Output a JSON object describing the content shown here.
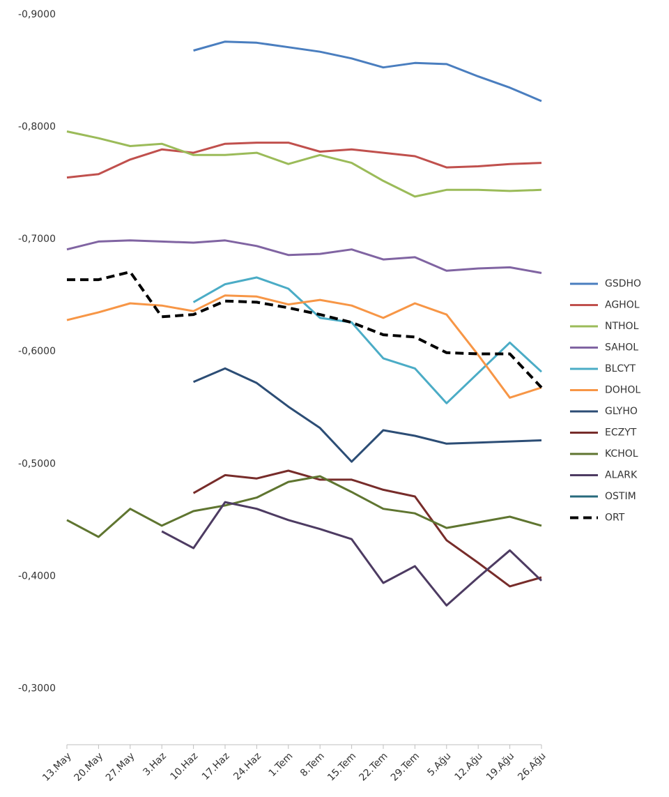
{
  "chart_data": {
    "type": "line",
    "categories": [
      "13.May",
      "20.May",
      "27.May",
      "3.Haz",
      "10.Haz",
      "17.Haz",
      "24.Haz",
      "1.Tem",
      "8.Tem",
      "15.Tem",
      "22.Tem",
      "29.Tem",
      "5.Ağu",
      "12.Ağu",
      "19.Ağu",
      "26.Ağu"
    ],
    "ylim": [
      -0.25,
      -0.9
    ],
    "yticks": [
      {
        "value": -0.9,
        "label": "-0,9000"
      },
      {
        "value": -0.8,
        "label": "-0,8000"
      },
      {
        "value": -0.7,
        "label": "-0,7000"
      },
      {
        "value": -0.6,
        "label": "-0,6000"
      },
      {
        "value": -0.5,
        "label": "-0,5000"
      },
      {
        "value": -0.4,
        "label": "-0,4000"
      },
      {
        "value": -0.3,
        "label": "-0,3000"
      }
    ],
    "grid": false,
    "legend": "right",
    "series": [
      {
        "name": "GSDHO",
        "color": "#4a7ebf",
        "values": [
          null,
          null,
          null,
          null,
          -0.868,
          -0.876,
          -0.875,
          -0.871,
          -0.867,
          -0.861,
          -0.853,
          -0.857,
          -0.856,
          -0.845,
          -0.835,
          -0.823
        ]
      },
      {
        "name": "AGHOL",
        "color": "#c0504d",
        "values": [
          -0.755,
          -0.758,
          -0.771,
          -0.78,
          -0.777,
          -0.785,
          -0.786,
          -0.786,
          -0.778,
          -0.78,
          -0.777,
          -0.774,
          -0.764,
          -0.765,
          -0.767,
          -0.768
        ]
      },
      {
        "name": "NTHOL",
        "color": "#9bbb59",
        "values": [
          -0.796,
          -0.79,
          -0.783,
          -0.785,
          -0.775,
          -0.775,
          -0.777,
          -0.767,
          -0.775,
          -0.768,
          -0.752,
          -0.738,
          -0.744,
          -0.744,
          -0.743,
          -0.744
        ]
      },
      {
        "name": "SAHOL",
        "color": "#8064a2",
        "values": [
          -0.691,
          -0.698,
          -0.699,
          -0.698,
          -0.697,
          -0.699,
          -0.694,
          -0.686,
          -0.687,
          -0.691,
          -0.682,
          -0.684,
          -0.672,
          -0.674,
          -0.675,
          -0.67
        ]
      },
      {
        "name": "BLCYT",
        "color": "#4bacc6",
        "values": [
          null,
          null,
          null,
          null,
          -0.644,
          -0.66,
          -0.666,
          -0.656,
          -0.63,
          -0.626,
          -0.594,
          -0.585,
          -0.554,
          -0.581,
          -0.608,
          -0.582
        ]
      },
      {
        "name": "DOHOL",
        "color": "#f79646",
        "values": [
          -0.628,
          -0.635,
          -0.643,
          -0.641,
          -0.636,
          -0.65,
          -0.649,
          -0.642,
          -0.646,
          -0.641,
          -0.63,
          -0.643,
          -0.633,
          -0.597,
          -0.559,
          -0.568
        ]
      },
      {
        "name": "GLYHO",
        "color": "#2c4d75",
        "values": [
          null,
          null,
          null,
          null,
          -0.573,
          -0.585,
          -0.572,
          -0.551,
          -0.532,
          -0.502,
          -0.53,
          -0.525,
          -0.518,
          -0.519,
          -0.52,
          -0.521
        ]
      },
      {
        "name": "ECZYT",
        "color": "#772c2a",
        "values": [
          null,
          null,
          null,
          null,
          -0.474,
          -0.49,
          -0.487,
          -0.494,
          -0.486,
          -0.486,
          -0.477,
          -0.471,
          -0.432,
          -0.412,
          -0.391,
          -0.399
        ]
      },
      {
        "name": "KCHOL",
        "color": "#5f7530",
        "values": [
          -0.45,
          -0.435,
          -0.46,
          -0.445,
          -0.458,
          -0.463,
          -0.47,
          -0.484,
          -0.489,
          -0.475,
          -0.46,
          -0.456,
          -0.443,
          -0.448,
          -0.453,
          -0.445
        ]
      },
      {
        "name": "ALARK",
        "color": "#4d3b62",
        "values": [
          null,
          null,
          null,
          -0.44,
          -0.425,
          -0.466,
          -0.46,
          -0.45,
          -0.442,
          -0.433,
          -0.394,
          -0.409,
          -0.374,
          -0.399,
          -0.423,
          -0.396
        ]
      },
      {
        "name": "OSTIM",
        "color": "#276a7c",
        "values": [
          null,
          null,
          null,
          null,
          null,
          null,
          null,
          null,
          null,
          null,
          null,
          null,
          null,
          null,
          null,
          null
        ]
      },
      {
        "name": "ORT",
        "color": "#000000",
        "dashed": true,
        "values": [
          -0.664,
          -0.664,
          -0.671,
          -0.631,
          -0.633,
          -0.645,
          -0.644,
          -0.639,
          -0.633,
          -0.626,
          -0.615,
          -0.613,
          -0.599,
          -0.598,
          -0.598,
          -0.568
        ]
      }
    ]
  }
}
